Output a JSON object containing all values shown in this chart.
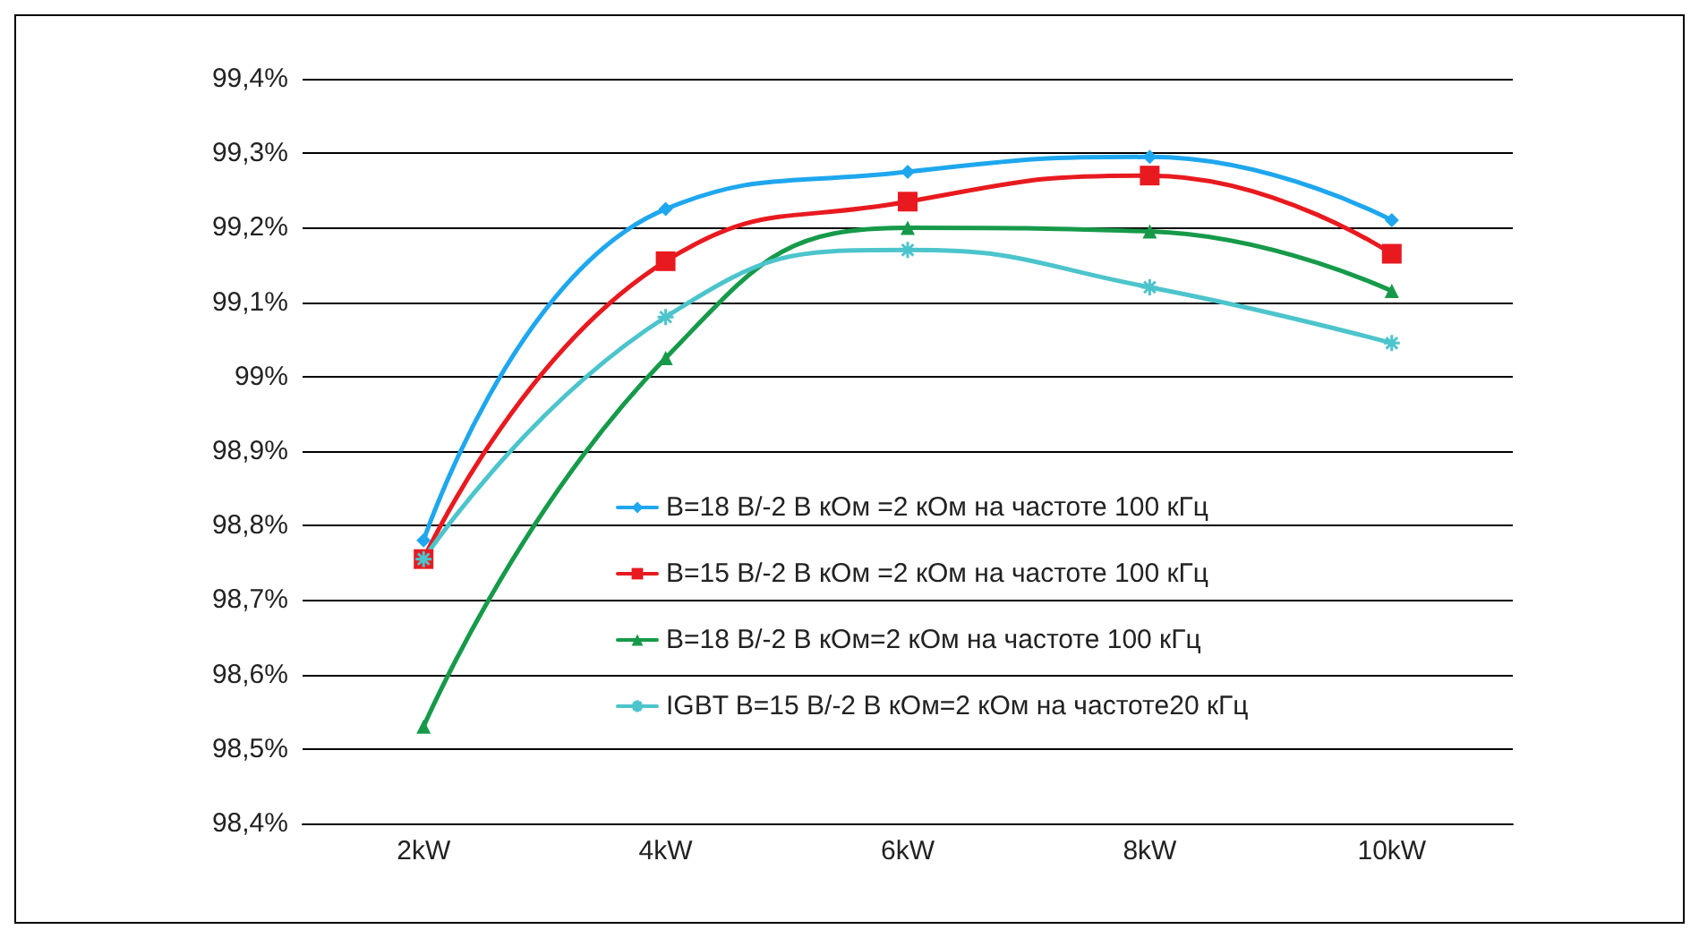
{
  "chart_data": {
    "type": "line",
    "categories": [
      "2kW",
      "4kW",
      "6kW",
      "8kW",
      "10kW"
    ],
    "series": [
      {
        "name": "B=18 В/-2 В кОм =2 кОм на частоте 100 кГц",
        "color": "#1ea7ee",
        "marker": "diamond",
        "values": [
          98.78,
          99.225,
          99.275,
          99.295,
          99.21
        ]
      },
      {
        "name": "B=15 В/-2 В кОм =2 кОм на частоте 100 кГц",
        "color": "#e81a1f",
        "marker": "square",
        "values": [
          98.755,
          99.155,
          99.235,
          99.27,
          99.165
        ]
      },
      {
        "name": "B=18 В/-2 В кОм=2 кОм на частоте 100 кГц",
        "color": "#169a4a",
        "marker": "triangle",
        "values": [
          98.53,
          99.025,
          99.2,
          99.195,
          99.115
        ]
      },
      {
        "name": "IGBT B=15 В/-2 В кОм=2 кОм на частоте20 кГц",
        "color": "#4cc4cc",
        "marker": "cross",
        "values": [
          98.755,
          99.08,
          99.17,
          99.12,
          99.045
        ]
      }
    ],
    "ylim": [
      98.4,
      99.4
    ],
    "yticks": [
      {
        "value": 98.4,
        "label": "98,4%"
      },
      {
        "value": 98.5,
        "label": "98,5%"
      },
      {
        "value": 98.6,
        "label": "98,6%"
      },
      {
        "value": 98.7,
        "label": "98,7%"
      },
      {
        "value": 98.8,
        "label": "98,8%"
      },
      {
        "value": 98.9,
        "label": "98,9%"
      },
      {
        "value": 99,
        "label": "99%"
      },
      {
        "value": 99.1,
        "label": "99,1%"
      },
      {
        "value": 99.2,
        "label": "99,2%"
      },
      {
        "value": 99.3,
        "label": "99,3%"
      },
      {
        "value": 99.4,
        "label": "99,4%"
      }
    ],
    "grid": "y",
    "legend": "right",
    "line_style": "solid"
  }
}
